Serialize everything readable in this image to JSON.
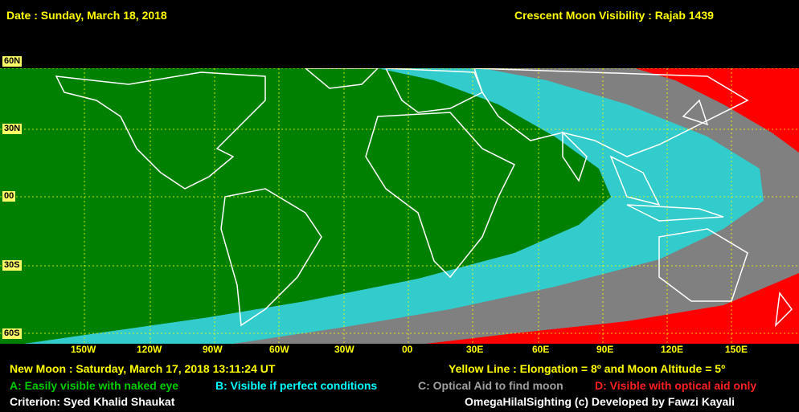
{
  "header": {
    "date": "Date : Sunday, March 18, 2018",
    "title": "Crescent Moon Visibility : Rajab  1439"
  },
  "lat_labels": [
    "60N",
    "30N",
    "00",
    "30S",
    "60S"
  ],
  "lon_labels": [
    "150W",
    "120W",
    "90W",
    "60W",
    "30W",
    "00",
    "30E",
    "60E",
    "90E",
    "120E",
    "150E"
  ],
  "footer": {
    "new_moon": "New Moon : Saturday, March 17, 2018  13:11:24  UT",
    "yellow_line": "Yellow Line : Elongation = 8º  and Moon Altitude = 5º",
    "criterion": "Criterion: Syed Khalid Shaukat",
    "credit": "OmegaHilalSighting  (c)  Developed by Fawzi Kayali"
  },
  "legend": [
    {
      "label": "A: Easily visible with naked eye",
      "color": "#008000"
    },
    {
      "label": "B: Visible if perfect conditions",
      "color": "#33cccc"
    },
    {
      "label": "C: Optical Aid to find moon",
      "color": "#808080"
    },
    {
      "label": "D: Visible with optical aid only",
      "color": "#ff0000"
    }
  ],
  "colors": {
    "zone_a": "#008000",
    "zone_b": "#33cccc",
    "zone_c": "#808080",
    "zone_d": "#ff0000",
    "grid": "#ffff00",
    "coast": "#ffffff"
  }
}
